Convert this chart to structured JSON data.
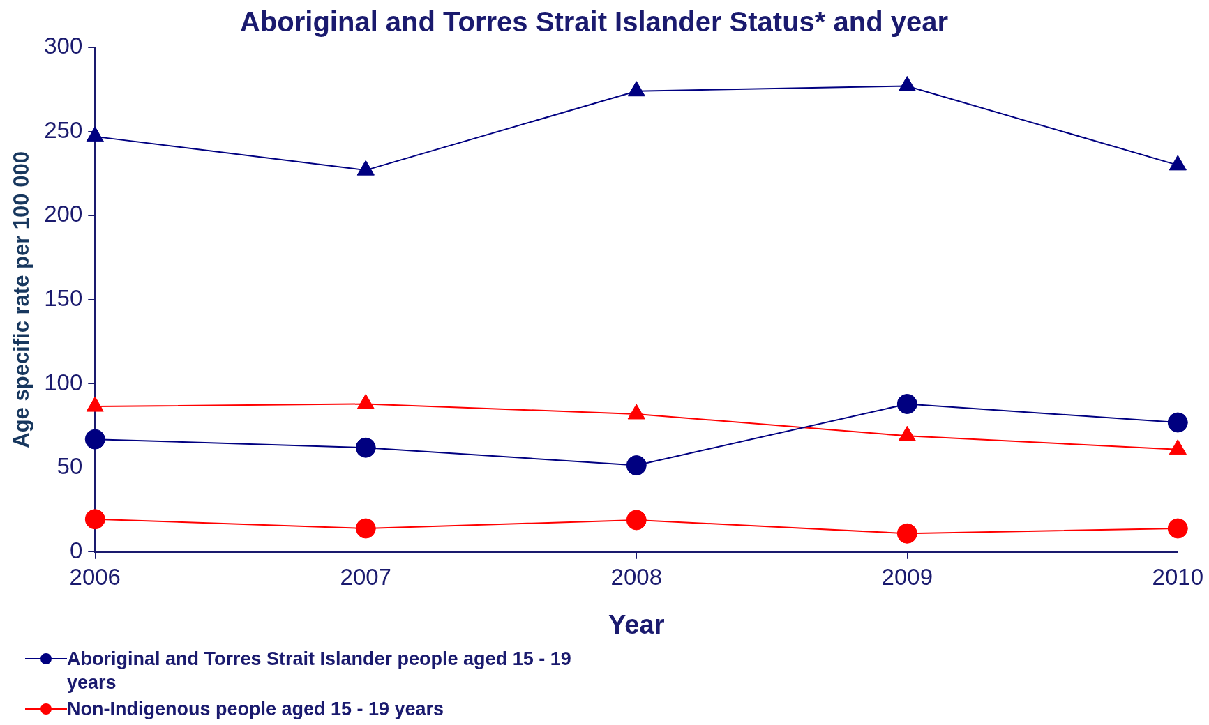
{
  "chart_data": {
    "type": "line",
    "title": "Aboriginal and Torres Strait Islander Status* and year",
    "xlabel": "Year",
    "ylabel": "Age specific rate per 100 000",
    "x": [
      2006,
      2007,
      2008,
      2009,
      2010
    ],
    "xlim": [
      2006,
      2010
    ],
    "xticks": [
      2006,
      2007,
      2008,
      2009,
      2010
    ],
    "ylim": [
      0,
      300
    ],
    "yticks": [
      0,
      50,
      100,
      150,
      200,
      250,
      300
    ],
    "grid": false,
    "legend": "bottom left",
    "line_style": "solid",
    "series": [
      {
        "name": "Aboriginal and Torres Strait Islander people aged 15 - 19 years",
        "color": "#000080",
        "marker": "circle",
        "values": [
          67,
          62,
          51.5,
          88,
          77
        ]
      },
      {
        "name": "Non-Indigenous people aged 15 - 19 years",
        "color": "#ff0000",
        "marker": "circle",
        "values": [
          19.5,
          14,
          19,
          11,
          14
        ]
      },
      {
        "color": "#000080",
        "marker": "triangle",
        "values": [
          247,
          227,
          274,
          277,
          230
        ]
      },
      {
        "color": "#ff0000",
        "marker": "triangle",
        "values": [
          86.5,
          88,
          82,
          69,
          61
        ]
      }
    ]
  }
}
